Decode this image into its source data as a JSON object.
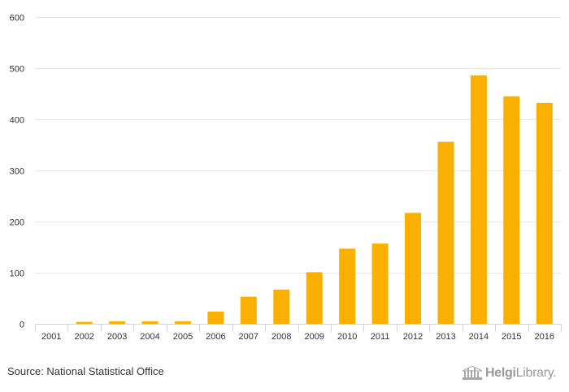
{
  "chart_data": {
    "type": "bar",
    "title": "",
    "xlabel": "",
    "ylabel": "",
    "categories": [
      "2001",
      "2002",
      "2003",
      "2004",
      "2005",
      "2006",
      "2007",
      "2008",
      "2009",
      "2010",
      "2011",
      "2012",
      "2013",
      "2014",
      "2015",
      "2016"
    ],
    "values": [
      0,
      4,
      5,
      5,
      5,
      24,
      53,
      67,
      101,
      147,
      157,
      217,
      356,
      486,
      445,
      432
    ],
    "ylim": [
      0,
      600
    ],
    "yticks": [
      0,
      100,
      200,
      300,
      400,
      500,
      600
    ],
    "grid": true,
    "legend": "none",
    "colors": {
      "bar": "#f9b000",
      "grid": "#e6e6e6",
      "axis": "#ccd6eb"
    }
  },
  "footer": {
    "source": "Source: National Statistical Office",
    "logo_name": "Helgi",
    "logo_suffix": "Library."
  }
}
